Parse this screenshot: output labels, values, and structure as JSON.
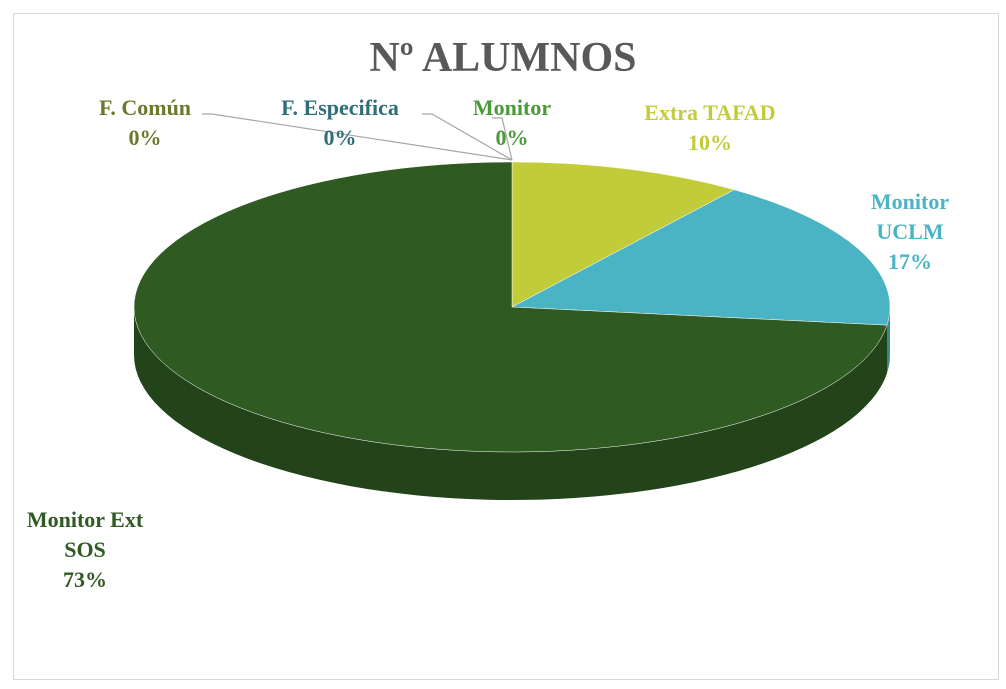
{
  "chart_data": {
    "type": "pie",
    "title": "Nº ALUMNOS",
    "categories": [
      "F. Común",
      "F. Especifica",
      "Monitor",
      "Extra TAFAD",
      "Monitor UCLM",
      "Monitor Ext SOS"
    ],
    "values": [
      0,
      0,
      0,
      10,
      17,
      73
    ],
    "value_labels": [
      "0%",
      "0%",
      "0%",
      "10%",
      "17%",
      "73%"
    ],
    "colors": [
      "#6b7a2a",
      "#2e6f7a",
      "#4a9a3a",
      "#c2cc3a",
      "#4ab4c4",
      "#2f5a22"
    ]
  }
}
